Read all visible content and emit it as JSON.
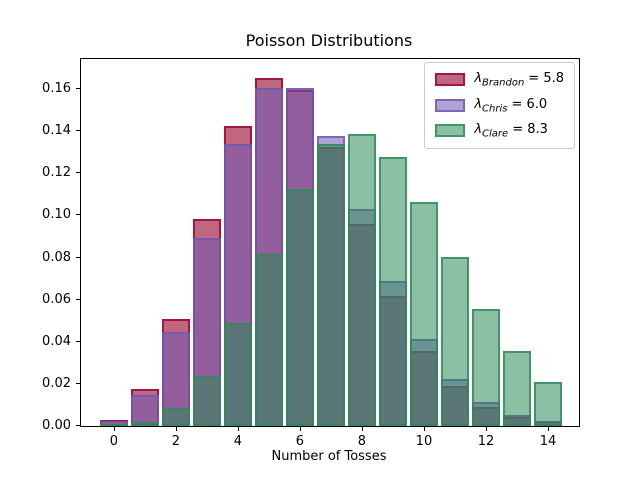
{
  "figure": {
    "title": "Poisson Distributions",
    "x_label": "Number of Tosses"
  },
  "axes": {
    "x_tick_labels": [
      "0",
      "2",
      "4",
      "6",
      "8",
      "10",
      "12",
      "14"
    ],
    "x_tick_values": [
      0,
      2,
      4,
      6,
      8,
      10,
      12,
      14
    ],
    "y_tick_labels": [
      "0.00",
      "0.02",
      "0.04",
      "0.06",
      "0.08",
      "0.10",
      "0.12",
      "0.14",
      "0.16"
    ],
    "y_tick_values": [
      0,
      0.02,
      0.04,
      0.06,
      0.08,
      0.1,
      0.12,
      0.14,
      0.16
    ]
  },
  "legend": {
    "items": [
      {
        "lambda_symbol": "λ",
        "subscript": "Brandon",
        "value_text": "= 5.8"
      },
      {
        "lambda_symbol": "λ",
        "subscript": "Chris",
        "value_text": "= 6.0"
      },
      {
        "lambda_symbol": "λ",
        "subscript": "Clare",
        "value_text": "= 8.3"
      }
    ]
  },
  "chart_data": {
    "type": "bar",
    "title": "Poisson Distributions",
    "xlabel": "Number of Tosses",
    "ylabel": "",
    "x": [
      0,
      1,
      2,
      3,
      4,
      5,
      6,
      7,
      8,
      9,
      10,
      11,
      12,
      13,
      14
    ],
    "bar_width": 0.9,
    "xlim": [
      -1.06,
      15.0
    ],
    "ylim": [
      0,
      0.1743
    ],
    "grid": false,
    "legend_position": "upper right",
    "series": [
      {
        "name": "Brandon",
        "lambda": 5.8,
        "fill_color": "rgba(160,20,60,0.65)",
        "edge_color": "rgba(160,20,60,0.95)",
        "base_hex": "#A0143C",
        "values": [
          0.003,
          0.0175,
          0.0508,
          0.0982,
          0.1424,
          0.1651,
          0.1596,
          0.1323,
          0.0959,
          0.0618,
          0.0358,
          0.0189,
          0.0091,
          0.0041,
          0.0017
        ]
      },
      {
        "name": "Chris",
        "lambda": 6.0,
        "fill_color": "rgba(110,88,178,0.55)",
        "edge_color": "rgba(110,88,178,0.80)",
        "base_hex": "#6E58B2",
        "values": [
          0.0025,
          0.0149,
          0.0446,
          0.0892,
          0.1339,
          0.1606,
          0.1606,
          0.1377,
          0.1033,
          0.0688,
          0.0413,
          0.0225,
          0.0113,
          0.0052,
          0.0022
        ]
      },
      {
        "name": "Clare",
        "lambda": 8.3,
        "fill_color": "rgba(46,139,87,0.55)",
        "edge_color": "rgba(46,139,87,0.80)",
        "base_hex": "#2E8B57",
        "values": [
          0.0002,
          0.0021,
          0.0086,
          0.0237,
          0.0491,
          0.0816,
          0.1128,
          0.1338,
          0.1388,
          0.128,
          0.1063,
          0.0802,
          0.0555,
          0.0354,
          0.021
        ]
      }
    ]
  }
}
